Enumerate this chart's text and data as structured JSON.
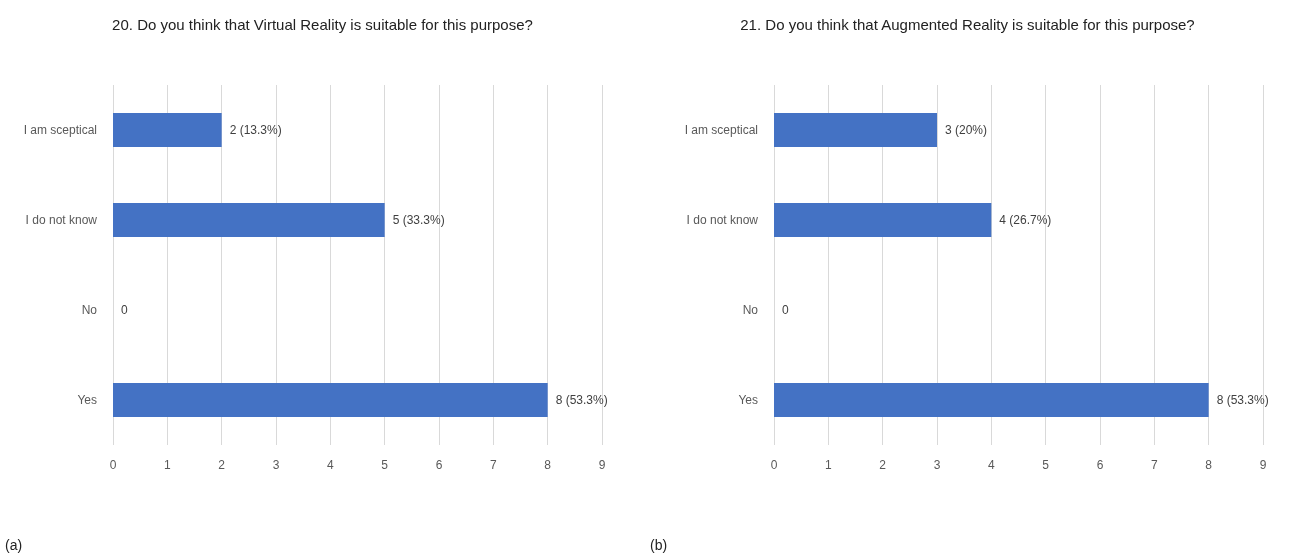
{
  "chart_data": [
    {
      "type": "bar",
      "orientation": "horizontal",
      "title": "20. Do you think that Virtual Reality is suitable for this purpose?",
      "categories": [
        "I am sceptical",
        "I do not know",
        "No",
        "Yes"
      ],
      "values": [
        2,
        5,
        0,
        8
      ],
      "value_labels": [
        "2 (13.3%)",
        "5 (33.3%)",
        "0",
        "8 (53.3%)"
      ],
      "color": "#4472c4",
      "xlim": [
        0,
        9
      ],
      "xticks": [
        0,
        1,
        2,
        3,
        4,
        5,
        6,
        7,
        8,
        9
      ],
      "grid": "x",
      "annotations": [
        "(a)"
      ]
    },
    {
      "type": "bar",
      "orientation": "horizontal",
      "title": "21. Do you think that Augmented Reality is suitable for this purpose?",
      "categories": [
        "I am sceptical",
        "I do not know",
        "No",
        "Yes"
      ],
      "values": [
        3,
        4,
        0,
        8
      ],
      "value_labels": [
        "3 (20%)",
        "4 (26.7%)",
        "0",
        "8 (53.3%)"
      ],
      "color": "#4472c4",
      "xlim": [
        0,
        9
      ],
      "xticks": [
        0,
        1,
        2,
        3,
        4,
        5,
        6,
        7,
        8,
        9
      ],
      "grid": "x",
      "annotations": [
        "(b)"
      ]
    }
  ]
}
